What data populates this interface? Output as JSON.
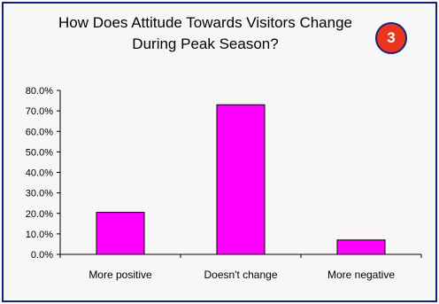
{
  "badge": {
    "number": "3"
  },
  "chart_data": {
    "type": "bar",
    "title": "How Does Attitude Towards Visitors Change During Peak Season?",
    "categories": [
      "More positive",
      "Doesn't change",
      "More negative"
    ],
    "values": [
      20.5,
      73.0,
      7.0
    ],
    "ylim": [
      0,
      80
    ],
    "yticks": [
      "0.0%",
      "10.0%",
      "20.0%",
      "30.0%",
      "40.0%",
      "50.0%",
      "60.0%",
      "70.0%",
      "80.0%"
    ],
    "bar_color": "#ff00ff",
    "grid": false,
    "legend": "none"
  }
}
